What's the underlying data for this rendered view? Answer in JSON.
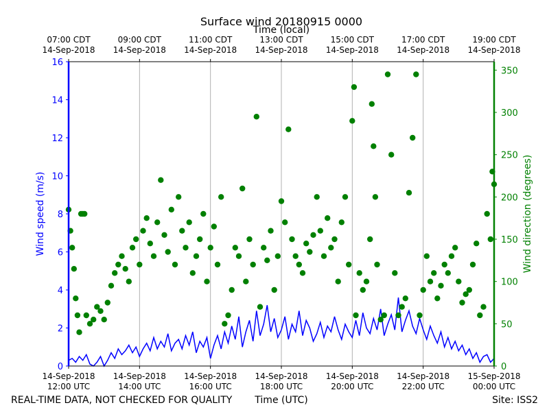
{
  "chart_data": {
    "type": "line+scatter",
    "title": "Surface wind 20180915 0000",
    "top_axis_label": "Time (local)",
    "xlabel": "Time (UTC)",
    "ylabel_left": "Wind speed (m/s)",
    "ylabel_right": "Wind direction (degrees)",
    "footer_left": "REAL-TIME DATA, NOT CHECKED FOR QUALITY",
    "footer_right": "Site: ISS2",
    "x_range_hours_utc": [
      12,
      24
    ],
    "ylim_left": [
      0,
      16
    ],
    "ylim_right": [
      0,
      360
    ],
    "left_ticks": [
      0,
      2,
      4,
      6,
      8,
      10,
      12,
      14,
      16
    ],
    "right_ticks": [
      0,
      50,
      100,
      150,
      200,
      250,
      300,
      350
    ],
    "bottom_ticks": [
      {
        "hour": 12,
        "line1": "14-Sep-2018",
        "line2": "12:00 UTC"
      },
      {
        "hour": 14,
        "line1": "14-Sep-2018",
        "line2": "14:00 UTC"
      },
      {
        "hour": 16,
        "line1": "14-Sep-2018",
        "line2": "16:00 UTC"
      },
      {
        "hour": 18,
        "line1": "14-Sep-2018",
        "line2": "18:00 UTC"
      },
      {
        "hour": 20,
        "line1": "14-Sep-2018",
        "line2": "20:00 UTC"
      },
      {
        "hour": 22,
        "line1": "14-Sep-2018",
        "line2": "22:00 UTC"
      },
      {
        "hour": 24,
        "line1": "15-Sep-2018",
        "line2": "00:00 UTC"
      }
    ],
    "top_ticks": [
      {
        "hour": 12,
        "line1": "07:00 CDT",
        "line2": "14-Sep-2018"
      },
      {
        "hour": 14,
        "line1": "09:00 CDT",
        "line2": "14-Sep-2018"
      },
      {
        "hour": 16,
        "line1": "11:00 CDT",
        "line2": "14-Sep-2018"
      },
      {
        "hour": 18,
        "line1": "13:00 CDT",
        "line2": "14-Sep-2018"
      },
      {
        "hour": 20,
        "line1": "15:00 CDT",
        "line2": "14-Sep-2018"
      },
      {
        "hour": 22,
        "line1": "17:00 CDT",
        "line2": "14-Sep-2018"
      },
      {
        "hour": 24,
        "line1": "19:00 CDT",
        "line2": "14-Sep-2018"
      }
    ],
    "series": [
      {
        "name": "Wind speed",
        "axis": "left",
        "style": "line",
        "color": "#0000ff",
        "x_hours": [
          12.0,
          12.1,
          12.2,
          12.3,
          12.4,
          12.5,
          12.6,
          12.7,
          12.8,
          12.9,
          13.0,
          13.1,
          13.2,
          13.3,
          13.4,
          13.5,
          13.6,
          13.7,
          13.8,
          13.9,
          14.0,
          14.1,
          14.2,
          14.3,
          14.4,
          14.5,
          14.6,
          14.7,
          14.8,
          14.9,
          15.0,
          15.1,
          15.2,
          15.3,
          15.4,
          15.5,
          15.6,
          15.7,
          15.8,
          15.9,
          16.0,
          16.1,
          16.2,
          16.3,
          16.4,
          16.5,
          16.6,
          16.7,
          16.8,
          16.9,
          17.0,
          17.1,
          17.2,
          17.3,
          17.4,
          17.5,
          17.6,
          17.7,
          17.8,
          17.9,
          18.0,
          18.1,
          18.2,
          18.3,
          18.4,
          18.5,
          18.6,
          18.7,
          18.8,
          18.9,
          19.0,
          19.1,
          19.2,
          19.3,
          19.4,
          19.5,
          19.6,
          19.7,
          19.8,
          19.9,
          20.0,
          20.1,
          20.2,
          20.3,
          20.4,
          20.5,
          20.6,
          20.7,
          20.8,
          20.9,
          21.0,
          21.1,
          21.2,
          21.3,
          21.4,
          21.5,
          21.6,
          21.7,
          21.8,
          21.9,
          22.0,
          22.1,
          22.2,
          22.3,
          22.4,
          22.5,
          22.6,
          22.7,
          22.8,
          22.9,
          23.0,
          23.1,
          23.2,
          23.3,
          23.4,
          23.5,
          23.6,
          23.7,
          23.8,
          23.9,
          24.0
        ],
        "values": [
          0.3,
          0.4,
          0.2,
          0.5,
          0.3,
          0.6,
          0.1,
          0.0,
          0.2,
          0.5,
          0.0,
          0.3,
          0.7,
          0.4,
          0.9,
          0.6,
          0.8,
          1.1,
          0.7,
          1.0,
          0.5,
          0.9,
          1.2,
          0.8,
          1.5,
          0.9,
          1.3,
          1.0,
          1.7,
          0.8,
          1.2,
          1.4,
          0.9,
          1.6,
          1.1,
          1.8,
          0.7,
          1.3,
          1.0,
          1.5,
          0.4,
          1.1,
          1.6,
          0.9,
          1.8,
          1.2,
          2.1,
          1.4,
          2.6,
          1.0,
          1.8,
          2.4,
          1.3,
          2.9,
          1.6,
          2.2,
          3.2,
          1.8,
          2.5,
          1.5,
          1.9,
          2.6,
          1.4,
          2.2,
          1.8,
          2.9,
          1.6,
          2.4,
          2.0,
          1.3,
          1.7,
          2.3,
          1.5,
          2.1,
          1.8,
          2.6,
          1.9,
          1.4,
          2.2,
          1.8,
          1.5,
          2.4,
          1.6,
          2.8,
          2.0,
          1.7,
          2.5,
          1.9,
          3.0,
          1.6,
          2.2,
          2.7,
          1.9,
          3.6,
          1.8,
          2.4,
          2.9,
          2.1,
          1.7,
          2.5,
          1.9,
          1.4,
          2.1,
          1.6,
          1.2,
          1.8,
          1.0,
          1.5,
          0.9,
          1.3,
          0.8,
          1.1,
          0.6,
          0.9,
          0.4,
          0.7,
          0.2,
          0.5,
          0.6,
          0.2,
          0.4
        ]
      },
      {
        "name": "Wind direction",
        "axis": "right",
        "style": "scatter",
        "color": "#008000",
        "x_hours": [
          12.0,
          12.05,
          12.1,
          12.15,
          12.2,
          12.25,
          12.3,
          12.35,
          12.4,
          12.45,
          12.5,
          12.6,
          12.7,
          12.8,
          12.9,
          13.0,
          13.1,
          13.2,
          13.3,
          13.4,
          13.5,
          13.6,
          13.7,
          13.8,
          13.9,
          14.0,
          14.1,
          14.2,
          14.3,
          14.4,
          14.5,
          14.6,
          14.7,
          14.8,
          14.9,
          15.0,
          15.1,
          15.2,
          15.3,
          15.4,
          15.5,
          15.6,
          15.7,
          15.8,
          15.9,
          16.0,
          16.1,
          16.2,
          16.3,
          16.4,
          16.5,
          16.6,
          16.7,
          16.8,
          16.9,
          17.0,
          17.1,
          17.2,
          17.3,
          17.4,
          17.5,
          17.6,
          17.7,
          17.8,
          17.9,
          18.0,
          18.1,
          18.2,
          18.3,
          18.4,
          18.5,
          18.6,
          18.7,
          18.8,
          18.9,
          19.0,
          19.1,
          19.2,
          19.3,
          19.4,
          19.5,
          19.6,
          19.7,
          19.8,
          19.9,
          20.0,
          20.05,
          20.1,
          20.2,
          20.3,
          20.4,
          20.5,
          20.55,
          20.6,
          20.65,
          20.7,
          20.8,
          20.9,
          21.0,
          21.1,
          21.2,
          21.3,
          21.4,
          21.5,
          21.6,
          21.7,
          21.8,
          21.9,
          22.0,
          22.1,
          22.2,
          22.3,
          22.4,
          22.5,
          22.6,
          22.7,
          22.8,
          22.9,
          23.0,
          23.1,
          23.2,
          23.3,
          23.4,
          23.5,
          23.6,
          23.7,
          23.8,
          23.9,
          23.95,
          24.0
        ],
        "values": [
          185,
          160,
          140,
          115,
          80,
          60,
          40,
          180,
          180,
          180,
          60,
          50,
          55,
          70,
          65,
          55,
          75,
          95,
          110,
          120,
          130,
          115,
          100,
          140,
          150,
          120,
          160,
          175,
          145,
          130,
          170,
          220,
          155,
          135,
          185,
          120,
          200,
          160,
          140,
          170,
          110,
          130,
          150,
          180,
          100,
          140,
          165,
          120,
          200,
          50,
          60,
          90,
          140,
          130,
          210,
          100,
          150,
          120,
          295,
          70,
          140,
          125,
          160,
          90,
          130,
          195,
          170,
          280,
          150,
          130,
          120,
          110,
          145,
          135,
          155,
          200,
          160,
          130,
          175,
          140,
          150,
          100,
          170,
          200,
          120,
          290,
          330,
          60,
          110,
          90,
          100,
          150,
          310,
          260,
          200,
          120,
          55,
          60,
          345,
          250,
          110,
          60,
          70,
          80,
          205,
          270,
          345,
          60,
          90,
          130,
          100,
          110,
          80,
          95,
          120,
          110,
          130,
          140,
          100,
          75,
          85,
          90,
          120,
          145,
          60,
          70,
          180,
          150,
          230,
          215
        ]
      }
    ]
  }
}
